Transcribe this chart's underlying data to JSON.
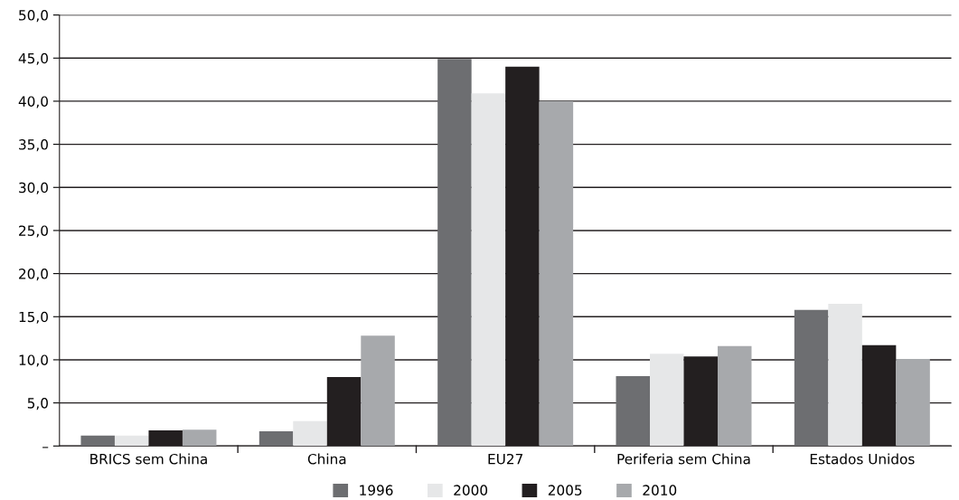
{
  "chart_data": {
    "type": "bar",
    "categories": [
      "BRICS sem China",
      "China",
      "EU27",
      "Periferia sem China",
      "Estados Unidos"
    ],
    "series": [
      {
        "name": "1996",
        "color": "#6d6e71",
        "values": [
          1.2,
          1.7,
          44.9,
          8.1,
          15.8
        ]
      },
      {
        "name": "2000",
        "color": "#e6e7e8",
        "values": [
          1.2,
          2.9,
          40.9,
          10.7,
          16.5
        ]
      },
      {
        "name": "2005",
        "color": "#231f20",
        "values": [
          1.8,
          8.0,
          44.0,
          10.4,
          11.7
        ]
      },
      {
        "name": "2010",
        "color": "#a7a9ac",
        "values": [
          1.9,
          12.8,
          40.0,
          11.6,
          10.1
        ]
      }
    ],
    "ylim": [
      0,
      50
    ],
    "yticks": [
      {
        "value": 0,
        "label": "–"
      },
      {
        "value": 5,
        "label": "5,0"
      },
      {
        "value": 10,
        "label": "10,0"
      },
      {
        "value": 15,
        "label": "15,0"
      },
      {
        "value": 20,
        "label": "20,0"
      },
      {
        "value": 25,
        "label": "25,0"
      },
      {
        "value": 30,
        "label": "30,0"
      },
      {
        "value": 35,
        "label": "35,0"
      },
      {
        "value": 40,
        "label": "40,0"
      },
      {
        "value": 45,
        "label": "45,0"
      },
      {
        "value": 50,
        "label": "50,0"
      }
    ],
    "grid": "y",
    "legend": "bottom"
  }
}
